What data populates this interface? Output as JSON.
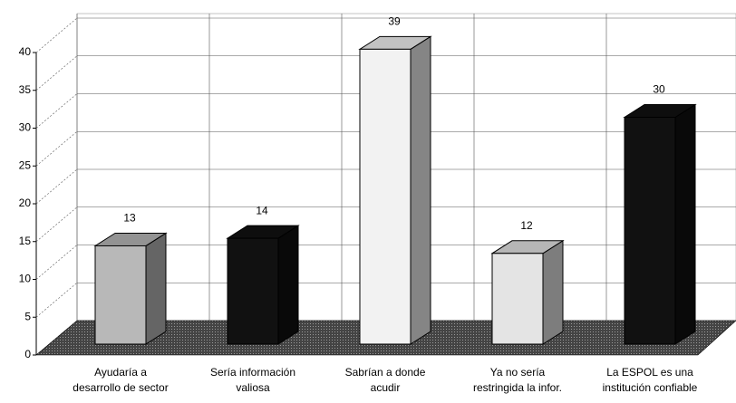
{
  "chart_data": {
    "type": "bar3d",
    "categories": [
      [
        "Ayudaría a",
        "desarrollo de sector"
      ],
      [
        "Sería  información",
        "valiosa"
      ],
      [
        "Sabrían a donde",
        "acudir"
      ],
      [
        "Ya no sería",
        "restringida la infor."
      ],
      [
        "La ESPOL es una",
        "institución confiable"
      ]
    ],
    "values": [
      13,
      14,
      39,
      12,
      30
    ],
    "colors": [
      "#b8b8b8",
      "#111111",
      "#f2f2f2",
      "#e4e4e4",
      "#111111"
    ],
    "ylim": [
      0,
      40
    ],
    "yticks": [
      0,
      5,
      10,
      15,
      20,
      25,
      30,
      35,
      40
    ],
    "grid": true
  }
}
